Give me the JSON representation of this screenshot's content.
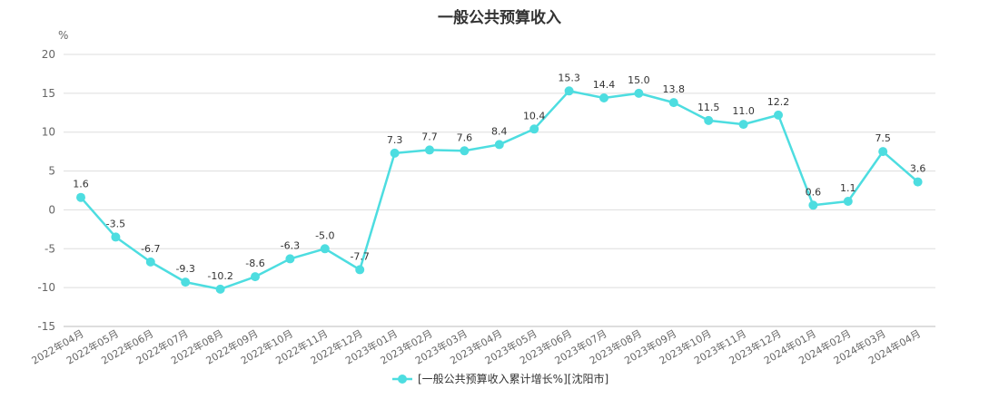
{
  "chart_data": {
    "type": "line",
    "title": "一般公共预算收入",
    "y_unit": "%",
    "ylim": [
      -15,
      20
    ],
    "yticks": [
      20,
      15,
      10,
      5,
      0,
      -5,
      -10,
      -15
    ],
    "grid": true,
    "legend_position": "bottom",
    "categories": [
      "2022年04月",
      "2022年05月",
      "2022年06月",
      "2022年07月",
      "2022年08月",
      "2022年09月",
      "2022年10月",
      "2022年11月",
      "2022年12月",
      "2023年01月",
      "2023年02月",
      "2023年03月",
      "2023年04月",
      "2023年05月",
      "2023年06月",
      "2023年07月",
      "2023年08月",
      "2023年09月",
      "2023年10月",
      "2023年11月",
      "2023年12月",
      "2024年01月",
      "2024年02月",
      "2024年03月",
      "2024年04月"
    ],
    "series": [
      {
        "name": "[一般公共预算收入累计增长%][沈阳市]",
        "color": "#4ddde0",
        "values": [
          1.6,
          -3.5,
          -6.7,
          -9.3,
          -10.2,
          -8.6,
          -6.3,
          -5.0,
          -7.7,
          7.3,
          7.7,
          7.6,
          8.4,
          10.4,
          15.3,
          14.4,
          15.0,
          13.8,
          11.5,
          11.0,
          12.2,
          0.6,
          1.1,
          7.5,
          3.6
        ],
        "labels": [
          "1.6",
          "-3.5",
          "-6.7",
          "-9.3",
          "-10.2",
          "-8.6",
          "-6.3",
          "-5.0",
          "-7.7",
          "7.3",
          "7.7",
          "7.6",
          "8.4",
          "10.4",
          "15.3",
          "14.4",
          "15.0",
          "13.8",
          "11.5",
          "11.0",
          "12.2",
          "0.6",
          "1.1",
          "7.5",
          "3.6"
        ]
      }
    ]
  }
}
